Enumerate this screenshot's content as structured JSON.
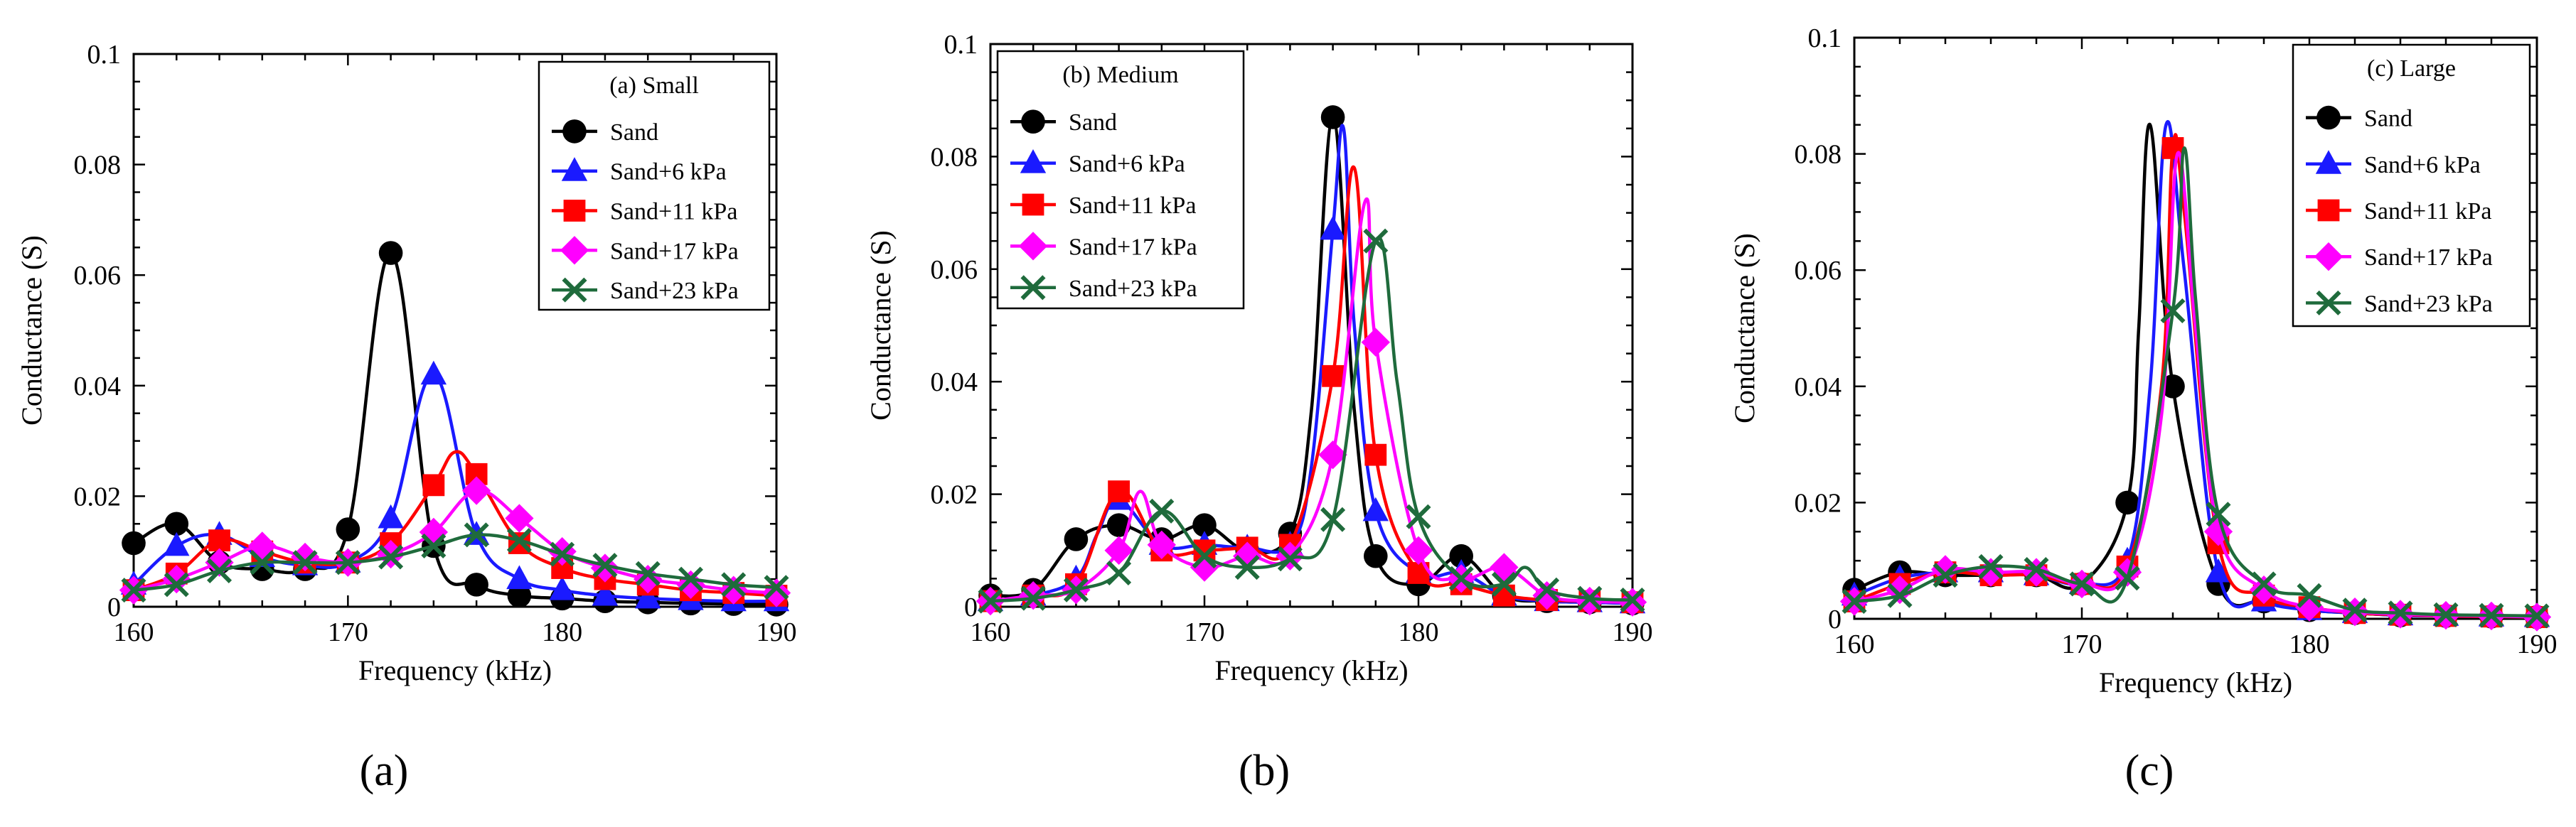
{
  "chart_data": [
    {
      "type": "line",
      "panel_label": "(a)",
      "legend_title": "(a) Small",
      "legend_position": "top-right",
      "xlabel": "Frequency (kHz)",
      "ylabel": "Conductance (S)",
      "xlim": [
        160,
        190
      ],
      "ylim": [
        0,
        0.1
      ],
      "xticks": [
        "160",
        "170",
        "180",
        "190"
      ],
      "yticks": [
        "0",
        "0.02",
        "0.04",
        "0.06",
        "0.08",
        "0.1"
      ],
      "series": [
        {
          "name": "Sand",
          "color": "#000000",
          "marker": "circle",
          "x": [
            160,
            162,
            164,
            166,
            168,
            170,
            172,
            174,
            176,
            178,
            180,
            182,
            184,
            186,
            188,
            190
          ],
          "y": [
            0.0115,
            0.015,
            0.008,
            0.0068,
            0.0068,
            0.014,
            0.064,
            0.011,
            0.004,
            0.002,
            0.0015,
            0.001,
            0.0008,
            0.0006,
            0.0005,
            0.0004
          ]
        },
        {
          "name": "Sand+6 kPa",
          "color": "#1a1aff",
          "marker": "triangle",
          "x": [
            160,
            162,
            164,
            166,
            168,
            170,
            172,
            174,
            176,
            178,
            180,
            182,
            184,
            186,
            188,
            190
          ],
          "y": [
            0.004,
            0.011,
            0.013,
            0.009,
            0.0075,
            0.008,
            0.016,
            0.042,
            0.013,
            0.005,
            0.003,
            0.002,
            0.0015,
            0.0012,
            0.001,
            0.001
          ]
        },
        {
          "name": "Sand+11 kPa",
          "color": "#ff0000",
          "marker": "square",
          "x": [
            160,
            162,
            164,
            166,
            168,
            170,
            172,
            174,
            175,
            176,
            178,
            180,
            182,
            184,
            186,
            188,
            190
          ],
          "y": [
            0.003,
            0.006,
            0.012,
            0.01,
            0.008,
            0.008,
            0.0115,
            0.022,
            0.028,
            0.024,
            0.0115,
            0.007,
            0.005,
            0.004,
            0.003,
            0.0025,
            0.002
          ]
        },
        {
          "name": "Sand+17 kPa",
          "color": "#ff00ff",
          "marker": "diamond",
          "x": [
            160,
            162,
            164,
            166,
            168,
            170,
            172,
            174,
            176,
            178,
            180,
            182,
            184,
            186,
            188,
            190
          ],
          "y": [
            0.003,
            0.005,
            0.008,
            0.011,
            0.009,
            0.008,
            0.0095,
            0.0135,
            0.021,
            0.016,
            0.01,
            0.007,
            0.005,
            0.004,
            0.003,
            0.0025
          ]
        },
        {
          "name": "Sand+23 kPa",
          "color": "#1f6b3c",
          "marker": "x",
          "x": [
            160,
            162,
            164,
            166,
            168,
            170,
            172,
            174,
            176,
            178,
            180,
            182,
            184,
            186,
            188,
            190
          ],
          "y": [
            0.003,
            0.004,
            0.0065,
            0.008,
            0.008,
            0.008,
            0.009,
            0.011,
            0.013,
            0.012,
            0.0095,
            0.0075,
            0.006,
            0.005,
            0.004,
            0.0035
          ]
        }
      ]
    },
    {
      "type": "line",
      "panel_label": "(b)",
      "legend_title": "(b) Medium",
      "legend_position": "top-left",
      "xlabel": "Frequency (kHz)",
      "ylabel": "Conductance (S)",
      "xlim": [
        160,
        190
      ],
      "ylim": [
        0,
        0.1
      ],
      "xticks": [
        "160",
        "170",
        "180",
        "190"
      ],
      "yticks": [
        "0",
        "0.02",
        "0.04",
        "0.06",
        "0.08",
        "0.1"
      ],
      "series": [
        {
          "name": "Sand",
          "color": "#000000",
          "marker": "circle",
          "x": [
            160,
            162,
            164,
            166,
            168,
            170,
            172,
            174,
            175,
            176,
            177,
            178,
            180,
            182,
            184,
            186,
            188,
            190
          ],
          "y": [
            0.002,
            0.003,
            0.012,
            0.0145,
            0.012,
            0.0145,
            0.01,
            0.013,
            0.035,
            0.087,
            0.035,
            0.009,
            0.004,
            0.009,
            0.002,
            0.001,
            0.0008,
            0.0006
          ]
        },
        {
          "name": "Sand+6 kPa",
          "color": "#1a1aff",
          "marker": "triangle",
          "x": [
            160,
            162,
            164,
            165,
            166,
            168,
            170,
            172,
            174,
            175,
            176,
            176.5,
            177,
            178,
            180,
            182,
            184,
            186,
            188,
            190
          ],
          "y": [
            0.001,
            0.002,
            0.005,
            0.013,
            0.019,
            0.011,
            0.011,
            0.0105,
            0.011,
            0.025,
            0.067,
            0.085,
            0.05,
            0.017,
            0.006,
            0.006,
            0.002,
            0.001,
            0.0008,
            0.0006
          ]
        },
        {
          "name": "Sand+11 kPa",
          "color": "#ff0000",
          "marker": "square",
          "x": [
            160,
            162,
            164,
            166,
            168,
            170,
            172,
            174,
            176,
            177,
            178,
            180,
            182,
            184,
            186,
            188,
            190
          ],
          "y": [
            0.001,
            0.002,
            0.004,
            0.0205,
            0.01,
            0.01,
            0.0105,
            0.011,
            0.041,
            0.078,
            0.027,
            0.006,
            0.004,
            0.002,
            0.0012,
            0.001,
            0.0008
          ]
        },
        {
          "name": "Sand+17 kPa",
          "color": "#ff00ff",
          "marker": "diamond",
          "x": [
            160,
            162,
            164,
            166,
            167,
            168,
            170,
            172,
            174,
            176,
            177.5,
            178,
            180,
            182,
            184,
            186,
            188,
            190
          ],
          "y": [
            0.001,
            0.002,
            0.003,
            0.01,
            0.0205,
            0.011,
            0.007,
            0.009,
            0.009,
            0.027,
            0.072,
            0.047,
            0.01,
            0.005,
            0.007,
            0.002,
            0.001,
            0.0008
          ]
        },
        {
          "name": "Sand+23 kPa",
          "color": "#1f6b3c",
          "marker": "x",
          "x": [
            160,
            162,
            164,
            166,
            168,
            170,
            172,
            174,
            176,
            178,
            179,
            180,
            182,
            184,
            185,
            186,
            188,
            190
          ],
          "y": [
            0.001,
            0.0015,
            0.003,
            0.006,
            0.017,
            0.009,
            0.007,
            0.0085,
            0.0155,
            0.065,
            0.04,
            0.016,
            0.005,
            0.004,
            0.007,
            0.003,
            0.0015,
            0.0012
          ]
        }
      ]
    },
    {
      "type": "line",
      "panel_label": "(c)",
      "legend_title": "(c) Large",
      "legend_position": "top-right",
      "xlabel": "Frequency (kHz)",
      "ylabel": "Conductance (S)",
      "xlim": [
        160,
        190
      ],
      "ylim": [
        0,
        0.1
      ],
      "xticks": [
        "160",
        "170",
        "180",
        "190"
      ],
      "yticks": [
        "0",
        "0.02",
        "0.04",
        "0.06",
        "0.08",
        "0.1"
      ],
      "series": [
        {
          "name": "Sand",
          "color": "#000000",
          "marker": "circle",
          "x": [
            160,
            162,
            164,
            166,
            168,
            170,
            172,
            172.5,
            173,
            174,
            176,
            178,
            180,
            182,
            184,
            186,
            188,
            190
          ],
          "y": [
            0.005,
            0.008,
            0.0075,
            0.0075,
            0.0075,
            0.006,
            0.02,
            0.05,
            0.085,
            0.04,
            0.006,
            0.003,
            0.0015,
            0.001,
            0.0006,
            0.0005,
            0.0004,
            0.0003
          ]
        },
        {
          "name": "Sand+6 kPa",
          "color": "#1a1aff",
          "marker": "triangle",
          "x": [
            160,
            162,
            164,
            166,
            168,
            170,
            172,
            173,
            173.7,
            174.5,
            176,
            178,
            180,
            182,
            184,
            186,
            188,
            190
          ],
          "y": [
            0.004,
            0.007,
            0.008,
            0.008,
            0.0075,
            0.006,
            0.01,
            0.04,
            0.085,
            0.06,
            0.008,
            0.003,
            0.0015,
            0.001,
            0.0006,
            0.0005,
            0.0004,
            0.0003
          ]
        },
        {
          "name": "Sand+11 kPa",
          "color": "#ff0000",
          "marker": "square",
          "x": [
            160,
            162,
            164,
            166,
            168,
            170,
            172,
            173.5,
            174,
            174.5,
            176,
            178,
            180,
            182,
            184,
            186,
            188,
            190
          ],
          "y": [
            0.003,
            0.006,
            0.008,
            0.0075,
            0.0075,
            0.006,
            0.009,
            0.04,
            0.081,
            0.07,
            0.013,
            0.004,
            0.002,
            0.001,
            0.0007,
            0.0005,
            0.0004,
            0.0003
          ]
        },
        {
          "name": "Sand+17 kPa",
          "color": "#ff00ff",
          "marker": "diamond",
          "x": [
            160,
            162,
            164,
            166,
            168,
            170,
            172,
            173.5,
            174.2,
            175,
            176,
            178,
            180,
            182,
            184,
            186,
            188,
            190
          ],
          "y": [
            0.003,
            0.005,
            0.0085,
            0.008,
            0.008,
            0.006,
            0.008,
            0.035,
            0.08,
            0.05,
            0.015,
            0.005,
            0.002,
            0.0012,
            0.0008,
            0.0006,
            0.0005,
            0.0003
          ]
        },
        {
          "name": "Sand+23 kPa",
          "color": "#1f6b3c",
          "marker": "x",
          "x": [
            160,
            162,
            164,
            166,
            168,
            170,
            172,
            174,
            174.5,
            175,
            176,
            178,
            180,
            182,
            184,
            186,
            188,
            190
          ],
          "y": [
            0.003,
            0.004,
            0.0075,
            0.009,
            0.0085,
            0.006,
            0.007,
            0.053,
            0.081,
            0.055,
            0.018,
            0.006,
            0.004,
            0.0015,
            0.001,
            0.0007,
            0.0006,
            0.0005
          ]
        }
      ]
    }
  ]
}
